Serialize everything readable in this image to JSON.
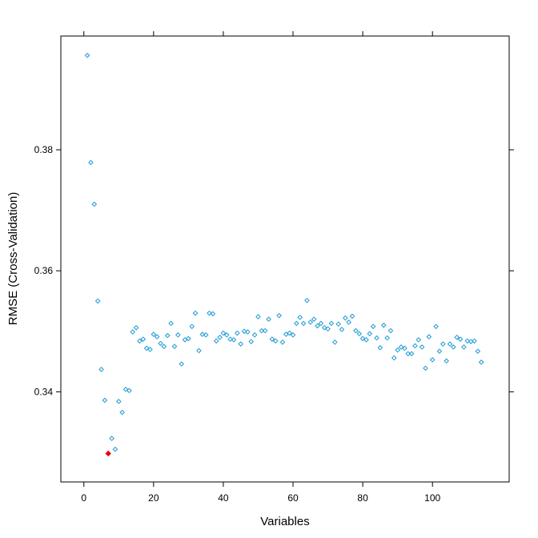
{
  "chart_data": {
    "type": "scatter",
    "title": "",
    "xlabel": "Variables",
    "ylabel": "RMSE (Cross-Validation)",
    "xlim": [
      -6.6,
      122.0
    ],
    "ylim": [
      0.3251,
      0.3988
    ],
    "xticks": [
      0,
      20,
      40,
      60,
      80,
      100
    ],
    "yticks": [
      0.34,
      0.36,
      0.38
    ],
    "xtick_labels": [
      "0",
      "20",
      "40",
      "60",
      "80",
      "100"
    ],
    "ytick_labels": [
      "0.34",
      "0.36",
      "0.38"
    ],
    "grid": false,
    "colors": {
      "points": "#1c9ad6",
      "highlight": "#e8000b",
      "axis": "#000000"
    },
    "series": [
      {
        "values": [
          [
            1,
            0.3956
          ],
          [
            2,
            0.3779
          ],
          [
            3,
            0.371
          ],
          [
            4,
            0.355
          ],
          [
            5,
            0.3437
          ],
          [
            6,
            0.3386
          ],
          [
            7,
            0.3298
          ],
          [
            8,
            0.3323
          ],
          [
            9,
            0.3305
          ],
          [
            10,
            0.3384
          ],
          [
            11,
            0.3366
          ],
          [
            12,
            0.3404
          ],
          [
            13,
            0.3402
          ],
          [
            14,
            0.3499
          ],
          [
            15,
            0.3506
          ],
          [
            16,
            0.3484
          ],
          [
            17,
            0.3487
          ],
          [
            18,
            0.3472
          ],
          [
            19,
            0.347
          ],
          [
            20,
            0.3495
          ],
          [
            21,
            0.3491
          ],
          [
            22,
            0.348
          ],
          [
            23,
            0.3475
          ],
          [
            24,
            0.3493
          ],
          [
            25,
            0.3513
          ],
          [
            26,
            0.3475
          ],
          [
            27,
            0.3494
          ],
          [
            28,
            0.3446
          ],
          [
            29,
            0.3486
          ],
          [
            30,
            0.3488
          ],
          [
            31,
            0.3508
          ],
          [
            32,
            0.353
          ],
          [
            33,
            0.3468
          ],
          [
            34,
            0.3495
          ],
          [
            35,
            0.3494
          ],
          [
            36,
            0.353
          ],
          [
            37,
            0.3529
          ],
          [
            38,
            0.3484
          ],
          [
            39,
            0.349
          ],
          [
            40,
            0.3497
          ],
          [
            41,
            0.3494
          ],
          [
            42,
            0.3487
          ],
          [
            43,
            0.3486
          ],
          [
            44,
            0.3497
          ],
          [
            45,
            0.3479
          ],
          [
            46,
            0.35
          ],
          [
            47,
            0.3499
          ],
          [
            48,
            0.3483
          ],
          [
            49,
            0.3494
          ],
          [
            50,
            0.3524
          ],
          [
            51,
            0.3501
          ],
          [
            52,
            0.3501
          ],
          [
            53,
            0.352
          ],
          [
            54,
            0.3487
          ],
          [
            55,
            0.3484
          ],
          [
            56,
            0.3526
          ],
          [
            57,
            0.3482
          ],
          [
            58,
            0.3495
          ],
          [
            59,
            0.3497
          ],
          [
            60,
            0.3494
          ],
          [
            61,
            0.3513
          ],
          [
            62,
            0.3523
          ],
          [
            63,
            0.3513
          ],
          [
            64,
            0.3551
          ],
          [
            65,
            0.3515
          ],
          [
            66,
            0.352
          ],
          [
            67,
            0.3509
          ],
          [
            68,
            0.3513
          ],
          [
            69,
            0.3506
          ],
          [
            70,
            0.3504
          ],
          [
            71,
            0.3513
          ],
          [
            72,
            0.3482
          ],
          [
            73,
            0.3512
          ],
          [
            74,
            0.3503
          ],
          [
            75,
            0.3522
          ],
          [
            76,
            0.3515
          ],
          [
            77,
            0.3525
          ],
          [
            78,
            0.3501
          ],
          [
            79,
            0.3496
          ],
          [
            80,
            0.3488
          ],
          [
            81,
            0.3486
          ],
          [
            82,
            0.3496
          ],
          [
            83,
            0.3508
          ],
          [
            84,
            0.3489
          ],
          [
            85,
            0.3473
          ],
          [
            86,
            0.351
          ],
          [
            87,
            0.3489
          ],
          [
            88,
            0.3501
          ],
          [
            89,
            0.3456
          ],
          [
            90,
            0.3469
          ],
          [
            91,
            0.3474
          ],
          [
            92,
            0.3472
          ],
          [
            93,
            0.3463
          ],
          [
            94,
            0.3463
          ],
          [
            95,
            0.3476
          ],
          [
            96,
            0.3486
          ],
          [
            97,
            0.3474
          ],
          [
            98,
            0.3439
          ],
          [
            99,
            0.3491
          ],
          [
            100,
            0.3453
          ],
          [
            101,
            0.3508
          ],
          [
            102,
            0.3467
          ],
          [
            103,
            0.3479
          ],
          [
            104,
            0.3451
          ],
          [
            105,
            0.3479
          ],
          [
            106,
            0.3474
          ],
          [
            107,
            0.349
          ],
          [
            108,
            0.3487
          ],
          [
            109,
            0.3474
          ],
          [
            110,
            0.3484
          ],
          [
            111,
            0.3483
          ],
          [
            112,
            0.3484
          ],
          [
            113,
            0.3467
          ],
          [
            114,
            0.3449
          ]
        ]
      }
    ],
    "highlight": {
      "x": 7,
      "y": 0.3298
    }
  }
}
